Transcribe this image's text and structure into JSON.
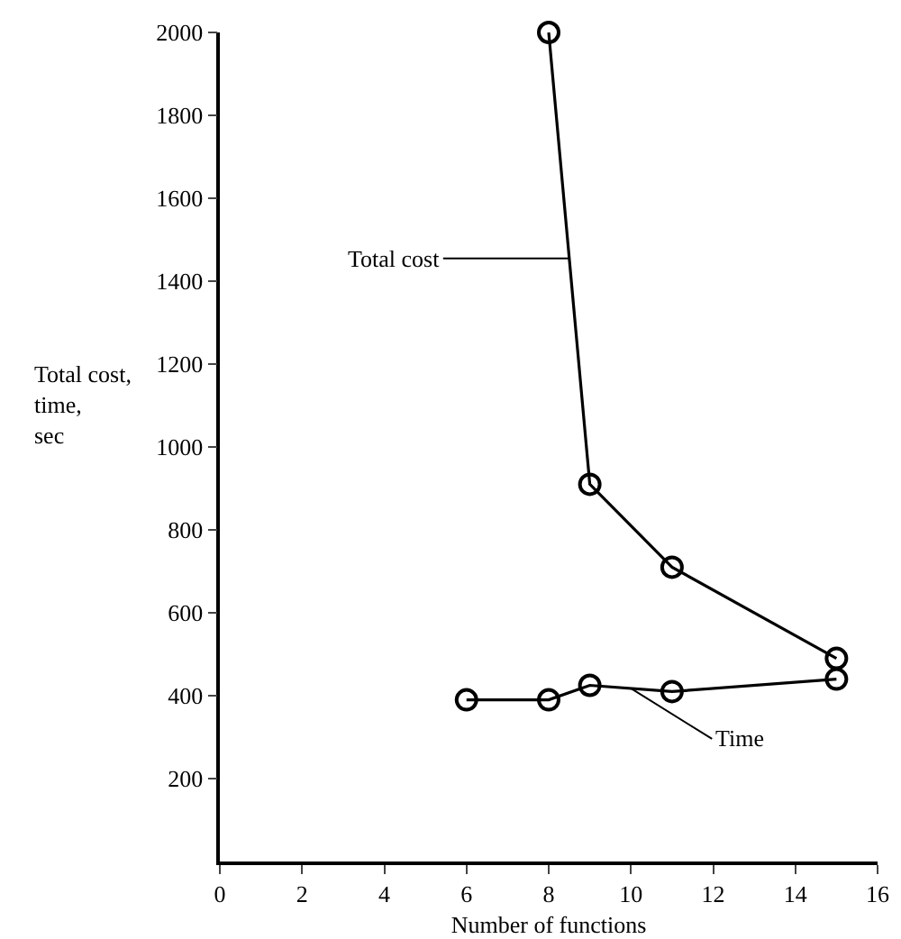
{
  "chart_data": {
    "type": "line",
    "xlabel": "Number of functions",
    "ylabel": "Total cost, time, sec",
    "xlim": [
      0,
      16
    ],
    "xticks": [
      0,
      2,
      4,
      6,
      8,
      10,
      12,
      14,
      16
    ],
    "ylim": [
      0,
      2000
    ],
    "yticks": [
      200,
      400,
      600,
      800,
      1000,
      1200,
      1400,
      1600,
      1800,
      2000
    ],
    "grid": false,
    "legend": false,
    "marker": "circle",
    "line_style": "solid",
    "series": [
      {
        "name": "Total cost",
        "color": "#000000",
        "x": [
          8,
          9,
          11,
          15
        ],
        "values": [
          2000,
          910,
          710,
          490
        ]
      },
      {
        "name": "Time",
        "color": "#000000",
        "x": [
          6,
          8,
          9,
          11,
          15
        ],
        "values": [
          390,
          390,
          425,
          410,
          440
        ]
      }
    ]
  }
}
